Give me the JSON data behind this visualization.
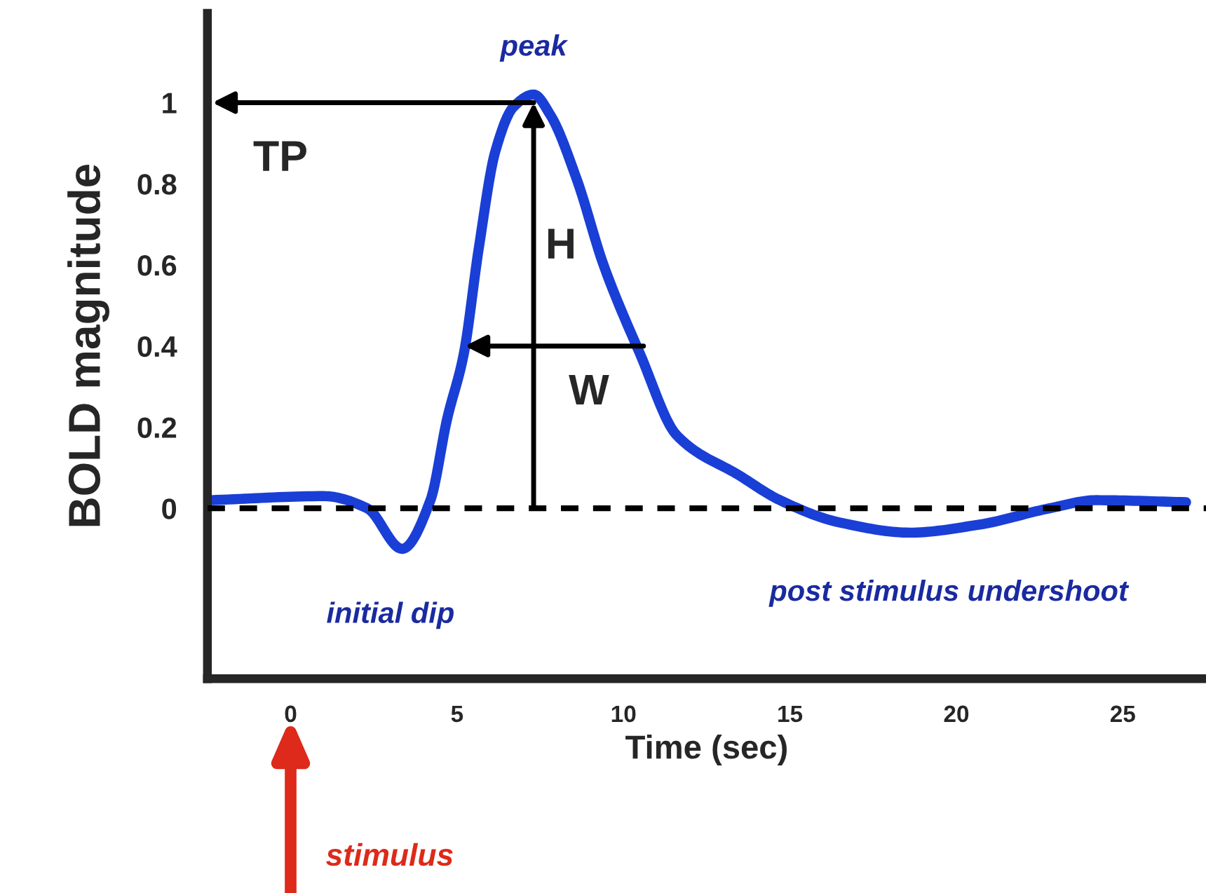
{
  "chart_data": {
    "type": "line",
    "xlabel": "Time (sec)",
    "ylabel": "BOLD magnitude",
    "x": [
      -2.4,
      1.0,
      2.3,
      3.35,
      4.2,
      4.7,
      5.2,
      5.65,
      6.15,
      6.7,
      7.3,
      7.8,
      8.6,
      9.4,
      10.5,
      11.6,
      13.5,
      14.7,
      16.5,
      18.6,
      20.7,
      22.8,
      24.2,
      26.9
    ],
    "series": [
      {
        "color": "#1a3fd6",
        "values": [
          0.02,
          0.03,
          0.0,
          -0.1,
          0.02,
          0.22,
          0.38,
          0.64,
          0.88,
          0.99,
          1.02,
          0.97,
          0.81,
          0.6,
          0.38,
          0.18,
          0.08,
          0.02,
          -0.035,
          -0.06,
          -0.04,
          0.0,
          0.02,
          0.015
        ]
      }
    ],
    "xlim": [
      -2.5,
      27.5
    ],
    "ylim": [
      -0.42,
      1.22
    ],
    "xticks": [
      0,
      5,
      10,
      15,
      20,
      25
    ],
    "yticks": [
      0,
      0.2,
      0.4,
      0.6,
      0.8,
      1
    ],
    "ref_lines": [
      {
        "axis": "y",
        "value": 0,
        "line_style": "dashed",
        "color": "#000000"
      }
    ],
    "annotations": [
      {
        "text": "peak",
        "x": 7.3,
        "y": 1.02
      },
      {
        "text": "TP",
        "x": 7.3,
        "y": 1.0
      },
      {
        "text": "H",
        "x": 7.3,
        "y": 1.0
      },
      {
        "text": "W",
        "x": 10.6,
        "y": 0.4
      },
      {
        "text": "initial dip",
        "x": 3.35,
        "y": -0.1
      },
      {
        "text": "post stimulus undershoot",
        "x": 18.6,
        "y": -0.06
      },
      "stimulus"
    ],
    "grid": false,
    "legend": false,
    "marker": "none",
    "line_style": "solid"
  }
}
